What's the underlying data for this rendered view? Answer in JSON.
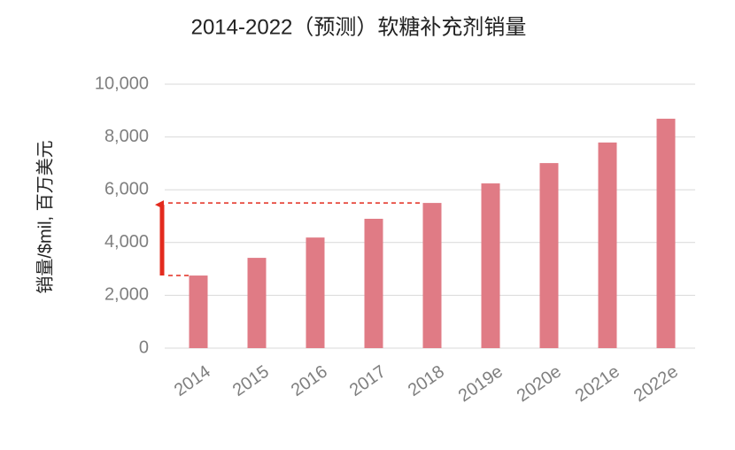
{
  "chart_data": {
    "type": "bar",
    "title": "2014-2022（预测）软糖补充剂销量",
    "y_label": "销量/$mil, 百万美元",
    "categories": [
      "2014",
      "2015",
      "2016",
      "2017",
      "2018",
      "2019e",
      "2020e",
      "2021e",
      "2022e"
    ],
    "values": [
      2750,
      3420,
      4190,
      4900,
      5500,
      6240,
      7010,
      7790,
      8690
    ],
    "color": "#e07b85",
    "ylim": [
      0,
      10000
    ],
    "yticks": [
      0,
      {
        "value": 2000,
        "label": "2,000"
      },
      {
        "value": 4000,
        "label": "4,000"
      },
      {
        "value": 6000,
        "label": "6,000"
      },
      {
        "value": 8000,
        "label": "8,000"
      },
      {
        "value": 10000,
        "label": "10,000"
      }
    ],
    "grid": true
  }
}
